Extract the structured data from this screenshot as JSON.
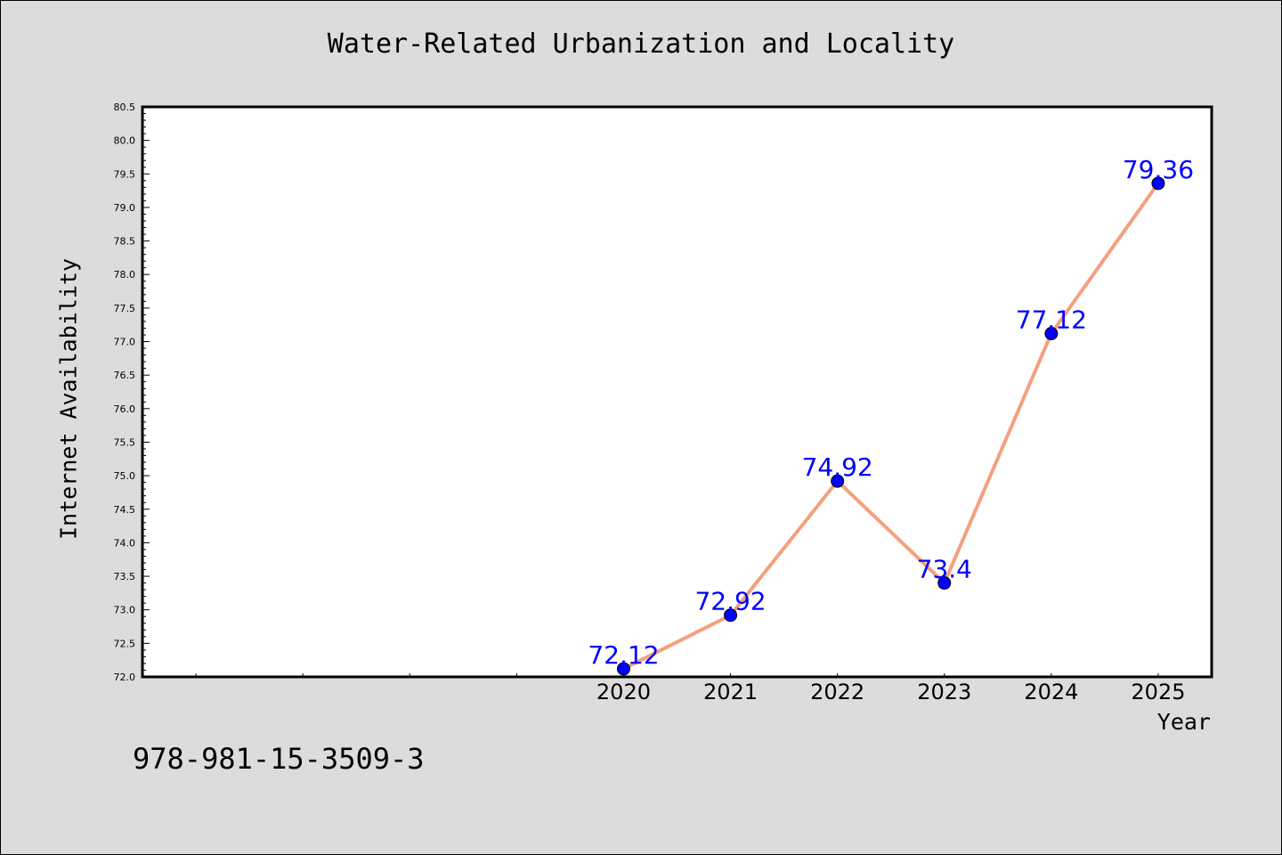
{
  "chart_data": {
    "type": "line",
    "title": "Water-Related Urbanization and Locality",
    "xlabel": "Year",
    "ylabel": "Internet Availability",
    "x": [
      2020,
      2021,
      2022,
      2023,
      2024,
      2025
    ],
    "series": [
      {
        "values": [
          72.12,
          72.92,
          74.92,
          73.4,
          77.12,
          79.36
        ],
        "data_labels": [
          "72.12",
          "72.92",
          "74.92",
          "73.4",
          "77.12",
          "79.36"
        ]
      }
    ],
    "ylim": [
      72.0,
      80.5
    ],
    "yticks": [
      "72.0",
      "72.5",
      "73.0",
      "73.5",
      "74.0",
      "74.5",
      "75.0",
      "75.5",
      "76.0",
      "76.5",
      "77.0",
      "77.5",
      "78.0",
      "78.5",
      "79.0",
      "79.5",
      "80.0",
      "80.5"
    ],
    "xticks": [
      "2020",
      "2021",
      "2022",
      "2023",
      "2024",
      "2025"
    ],
    "xlim": [
      2015.5,
      2025.5
    ],
    "grid": false,
    "line_color": "#f4a07e",
    "marker_color": "#0000ff",
    "label_color": "#0000ff"
  },
  "footer_text": "978-981-15-3509-3"
}
